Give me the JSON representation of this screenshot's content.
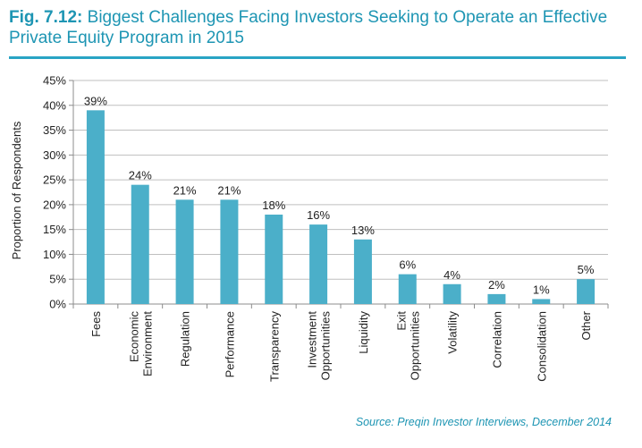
{
  "header": {
    "fig_label": "Fig. 7.12:",
    "title": "Biggest Challenges Facing Investors Seeking to Operate an Effective Private Equity Program in 2015"
  },
  "source": "Source: Preqin Investor Interviews, December 2014",
  "colors": {
    "bar": "#4bafc9",
    "title": "#1d95b3",
    "rule": "#29a4c4",
    "grid": "#bfbfbf",
    "axis": "#8c8c8c"
  },
  "chart_data": {
    "type": "bar",
    "title": "Biggest Challenges Facing Investors Seeking to Operate an Effective Private Equity Program in 2015",
    "ylabel": "Proportion of Respondents",
    "xlabel": "",
    "ylim": [
      0,
      45
    ],
    "yticks": [
      "0%",
      "5%",
      "10%",
      "15%",
      "20%",
      "25%",
      "30%",
      "35%",
      "40%",
      "45%"
    ],
    "grid": true,
    "categories": [
      [
        "Fees"
      ],
      [
        "Economic",
        "Environment"
      ],
      [
        "Regulation"
      ],
      [
        "Performance"
      ],
      [
        "Transparency"
      ],
      [
        "Investment",
        "Opportunities"
      ],
      [
        "Liquidity"
      ],
      [
        "Exit",
        "Opportunities"
      ],
      [
        "Volatility"
      ],
      [
        "Correlation"
      ],
      [
        "Consolidation"
      ],
      [
        "Other"
      ]
    ],
    "values": [
      39,
      24,
      21,
      21,
      18,
      16,
      13,
      6,
      4,
      2,
      1,
      5
    ],
    "data_labels": [
      "39%",
      "24%",
      "21%",
      "21%",
      "18%",
      "16%",
      "13%",
      "6%",
      "4%",
      "2%",
      "1%",
      "5%"
    ]
  }
}
